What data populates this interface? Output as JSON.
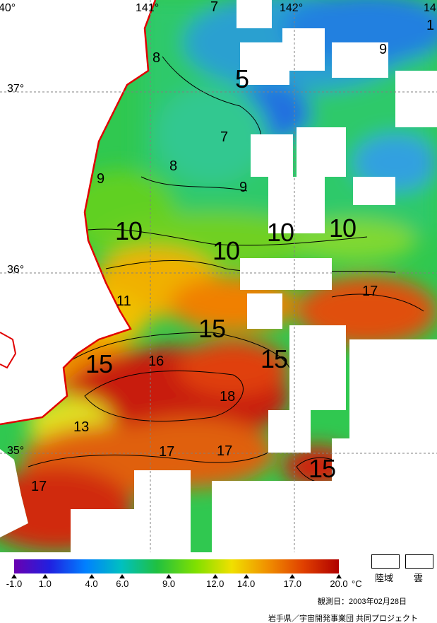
{
  "grid_labels": {
    "lon_140": "40°",
    "lon_141": "141°",
    "lon_142": "142°",
    "lon_143": "14",
    "lat_37": "37°",
    "lat_36": "36°",
    "lat_35": "35°"
  },
  "isotherms": [
    {
      "key": "a",
      "text": "5"
    },
    {
      "key": "b",
      "text": "7"
    },
    {
      "key": "c",
      "text": "7"
    },
    {
      "key": "d",
      "text": "8"
    },
    {
      "key": "e",
      "text": "8"
    },
    {
      "key": "f",
      "text": "9"
    },
    {
      "key": "g",
      "text": "9"
    },
    {
      "key": "h",
      "text": "9"
    },
    {
      "key": "i",
      "text": "10"
    },
    {
      "key": "j",
      "text": "10"
    },
    {
      "key": "k",
      "text": "10"
    },
    {
      "key": "l",
      "text": "10"
    },
    {
      "key": "m",
      "text": "11"
    },
    {
      "key": "n",
      "text": "15"
    },
    {
      "key": "o",
      "text": "15"
    },
    {
      "key": "p",
      "text": "15"
    },
    {
      "key": "q",
      "text": "15"
    },
    {
      "key": "r",
      "text": "16"
    },
    {
      "key": "s",
      "text": "17"
    },
    {
      "key": "t",
      "text": "18"
    },
    {
      "key": "u",
      "text": "13"
    },
    {
      "key": "v",
      "text": "17"
    },
    {
      "key": "w",
      "text": "17"
    },
    {
      "key": "x",
      "text": "17"
    },
    {
      "key": "y",
      "text": "1"
    }
  ],
  "color_scale": {
    "min": -1.0,
    "max": 20.0,
    "ticks": [
      "-1.0",
      "1.0",
      "4.0",
      "6.0",
      "9.0",
      "12.0",
      "14.0",
      "17.0",
      "20.0"
    ],
    "unit": "°C",
    "colors": [
      "#6a00b0",
      "#2020e0",
      "#0080ff",
      "#00c0c0",
      "#20c040",
      "#80e000",
      "#f0e000",
      "#f09000",
      "#e04000",
      "#b00000"
    ]
  },
  "legend": {
    "land_label": "陸域",
    "cloud_label": "雲"
  },
  "footer": {
    "observation_date": "観測日：2003年02月28日",
    "credit": "岩手県／宇宙開発事業団 共同プロジェクト"
  },
  "colors": {
    "coastline": "#e00000",
    "land": "#ffffff",
    "cloud": "#ffffff"
  }
}
